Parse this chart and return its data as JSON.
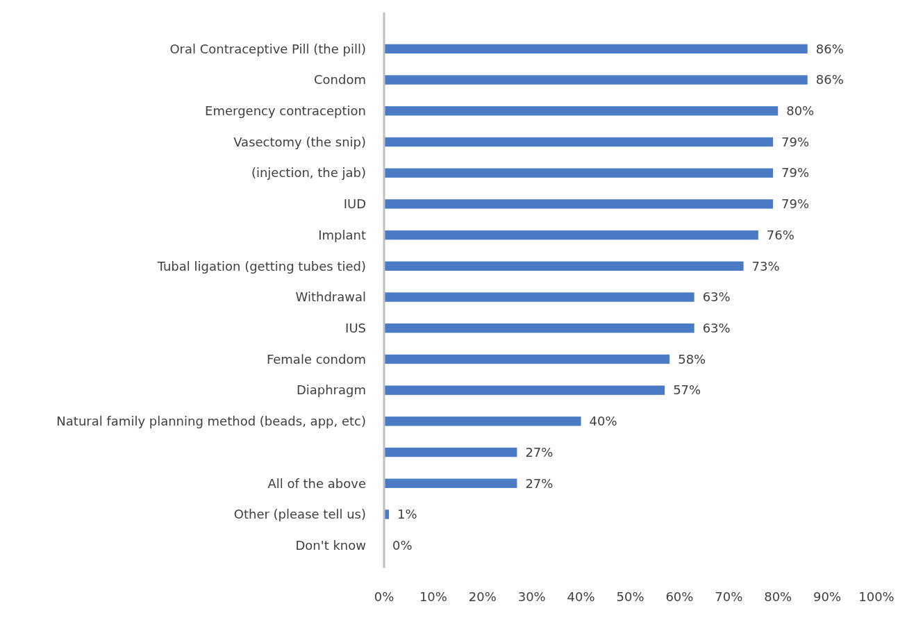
{
  "chart_data": {
    "type": "bar",
    "orientation": "horizontal",
    "categories": [
      "Oral Contraceptive Pill (the pill)",
      "Condom",
      "Emergency contraception",
      "Vasectomy (the snip)",
      "(injection, the jab)",
      "IUD",
      "Implant",
      "Tubal ligation (getting tubes tied)",
      "Withdrawal",
      "IUS",
      "Female condom",
      "Diaphragm",
      "Natural family planning method (beads, app, etc)",
      null,
      "All of the above",
      "Other (please tell us)",
      "Don't know"
    ],
    "values": [
      86,
      86,
      80,
      79,
      79,
      79,
      76,
      73,
      63,
      63,
      58,
      57,
      40,
      27,
      27,
      1,
      0
    ],
    "value_labels": [
      "86%",
      "86%",
      "80%",
      "79%",
      "79%",
      "79%",
      "76%",
      "73%",
      "63%",
      "63%",
      "58%",
      "57%",
      "40%",
      "27%",
      "27%",
      "1%",
      "0%"
    ],
    "color": "#4a7bc4",
    "xlim": [
      0,
      100
    ],
    "xticks": [
      {
        "value": 0,
        "label": "0%"
      },
      {
        "value": 10,
        "label": "10%"
      },
      {
        "value": 20,
        "label": "20%"
      },
      {
        "value": 30,
        "label": "30%"
      },
      {
        "value": 40,
        "label": "40%"
      },
      {
        "value": 50,
        "label": "50%"
      },
      {
        "value": 60,
        "label": "60%"
      },
      {
        "value": 70,
        "label": "70%"
      },
      {
        "value": 80,
        "label": "80%"
      },
      {
        "value": 90,
        "label": "90%"
      },
      {
        "value": 100,
        "label": "100%"
      }
    ],
    "grid": false
  }
}
